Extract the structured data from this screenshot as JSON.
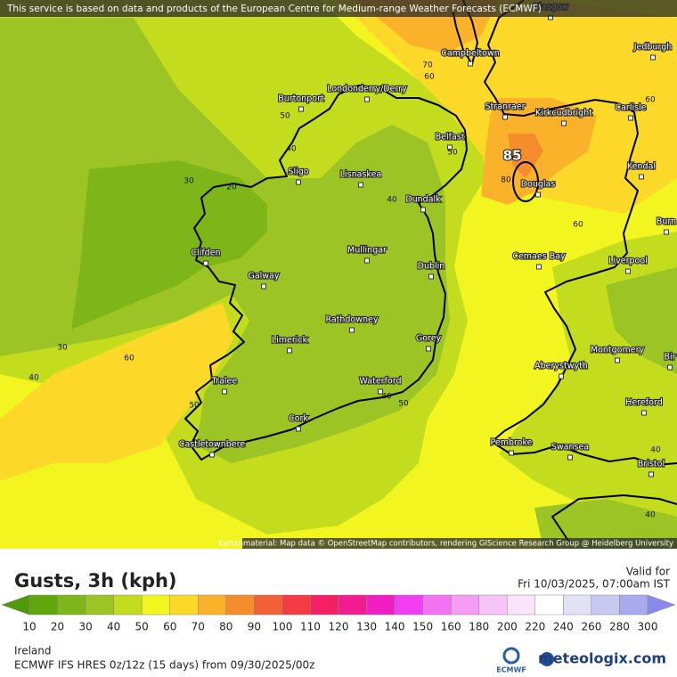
{
  "header": {
    "attribution": "This service is based on data and products of the European Centre for Medium-range Weather Forecasts (ECMWF)"
  },
  "map": {
    "credit": "Kartenmaterial: Map data © OpenStreetMap contributors, rendering GIScience Research Group @ Heidelberg University",
    "cities": [
      "Glasgow",
      "Campbeltown",
      "Jedburgh",
      "Burtonport",
      "Londonderry/Derry",
      "Stranraer",
      "Kirkcudbright",
      "Carlisle",
      "Belfast",
      "Sligo",
      "Lisnaskea",
      "Douglas",
      "Kendal",
      "Dundalk",
      "Burn",
      "Clifden",
      "Mullingar",
      "Cemaes Bay",
      "Liverpool",
      "Galway",
      "Dublin",
      "Rathdowney",
      "Limerick",
      "Gorey",
      "Montgomery",
      "Bir",
      "Aberystwyth",
      "Tralee",
      "Waterford",
      "Hereford",
      "Cork",
      "Castletownbere",
      "Pembroke",
      "Swansea",
      "Bristol"
    ],
    "contour_labels": [
      70,
      60,
      50,
      40,
      50,
      85,
      80,
      30,
      20,
      40,
      60,
      60,
      30,
      60,
      40,
      40,
      50,
      50,
      40,
      40
    ]
  },
  "legend": {
    "title": "Gusts, 3h (kph)",
    "valid_label": "Valid for",
    "valid_time": "Fri 10/03/2025, 07:00am IST",
    "ticks": [
      10,
      20,
      30,
      40,
      50,
      60,
      70,
      80,
      90,
      100,
      110,
      120,
      130,
      140,
      150,
      160,
      180,
      200,
      220,
      240,
      260,
      280,
      300
    ],
    "colors": [
      "#4f9a06",
      "#62a60e",
      "#7eb61a",
      "#9cc424",
      "#c3dc1e",
      "#f2f51f",
      "#fcd828",
      "#f9b22a",
      "#f58d2d",
      "#f2603a",
      "#f43b43",
      "#f51f66",
      "#f21c90",
      "#f01ec2",
      "#f03ef0",
      "#f272f2",
      "#f49cf4",
      "#f6c4f6",
      "#f9e4f9",
      "#ffffff",
      "#e2e2f6",
      "#c8c8f0",
      "#a9a9ee",
      "#8a8aee"
    ]
  },
  "footer": {
    "region": "Ireland",
    "model": "ECMWF IFS HRES 0z/12z (15 days) from  09/30/2025/00z",
    "logo": "ECMWF",
    "brand": "meteologix.com"
  }
}
